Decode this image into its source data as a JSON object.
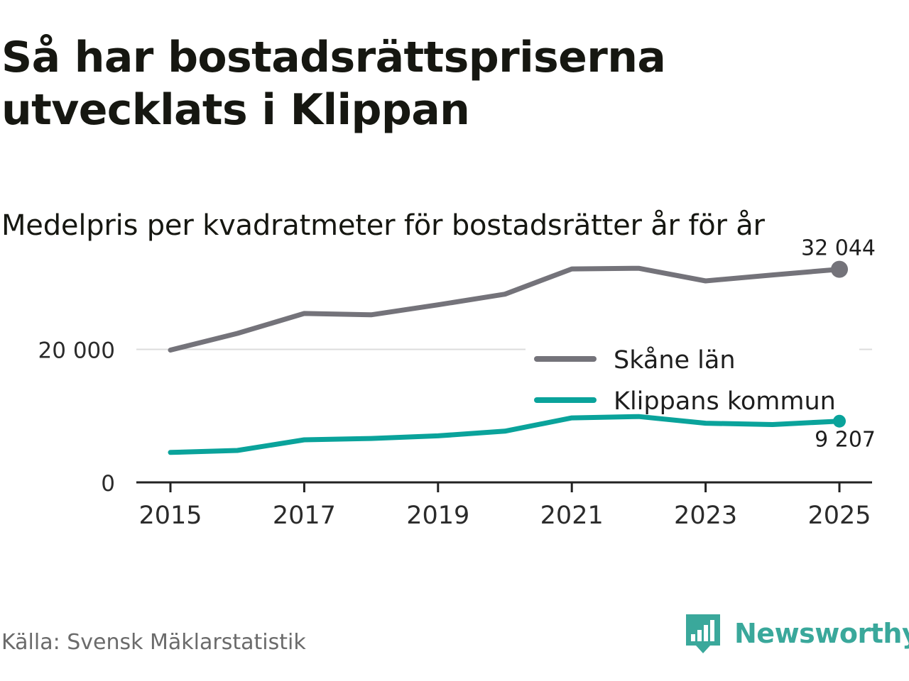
{
  "title": "Så har bostadsrättspriserna utvecklats i Klippan",
  "subtitle": "Medelpris per kvadratmeter för bostadsrätter år för år",
  "source": "Källa: Svensk Mäklarstatistik",
  "brand": {
    "name": "Newsworthy",
    "icon": "newsworthy-logo-icon",
    "color": "#3aa89b"
  },
  "chart_data": {
    "type": "line",
    "title": "Medelpris per kvadratmeter för bostadsrätter år för år",
    "xlabel": "",
    "ylabel": "",
    "x": [
      2015,
      2016,
      2017,
      2018,
      2019,
      2020,
      2021,
      2022,
      2023,
      2024,
      2025
    ],
    "xticks": [
      "2015",
      "2017",
      "2019",
      "2021",
      "2023",
      "2025"
    ],
    "yticks": [
      {
        "value": 0,
        "label": "0"
      },
      {
        "value": 20000,
        "label": "20 000"
      }
    ],
    "ylim": [
      0,
      33500
    ],
    "grid": "horizontal",
    "legend_position": "right",
    "series": [
      {
        "name": "Skåne län",
        "color": "#74737a",
        "values": [
          19900,
          22400,
          25400,
          25200,
          26700,
          28300,
          32100,
          32200,
          30300,
          31200,
          32044
        ],
        "end_label": "32 044"
      },
      {
        "name": "Klippans kommun",
        "color": "#0aa39b",
        "values": [
          4500,
          4800,
          6400,
          6600,
          7000,
          7700,
          9700,
          9900,
          8900,
          8700,
          9207
        ],
        "end_label": "9 207"
      }
    ]
  }
}
